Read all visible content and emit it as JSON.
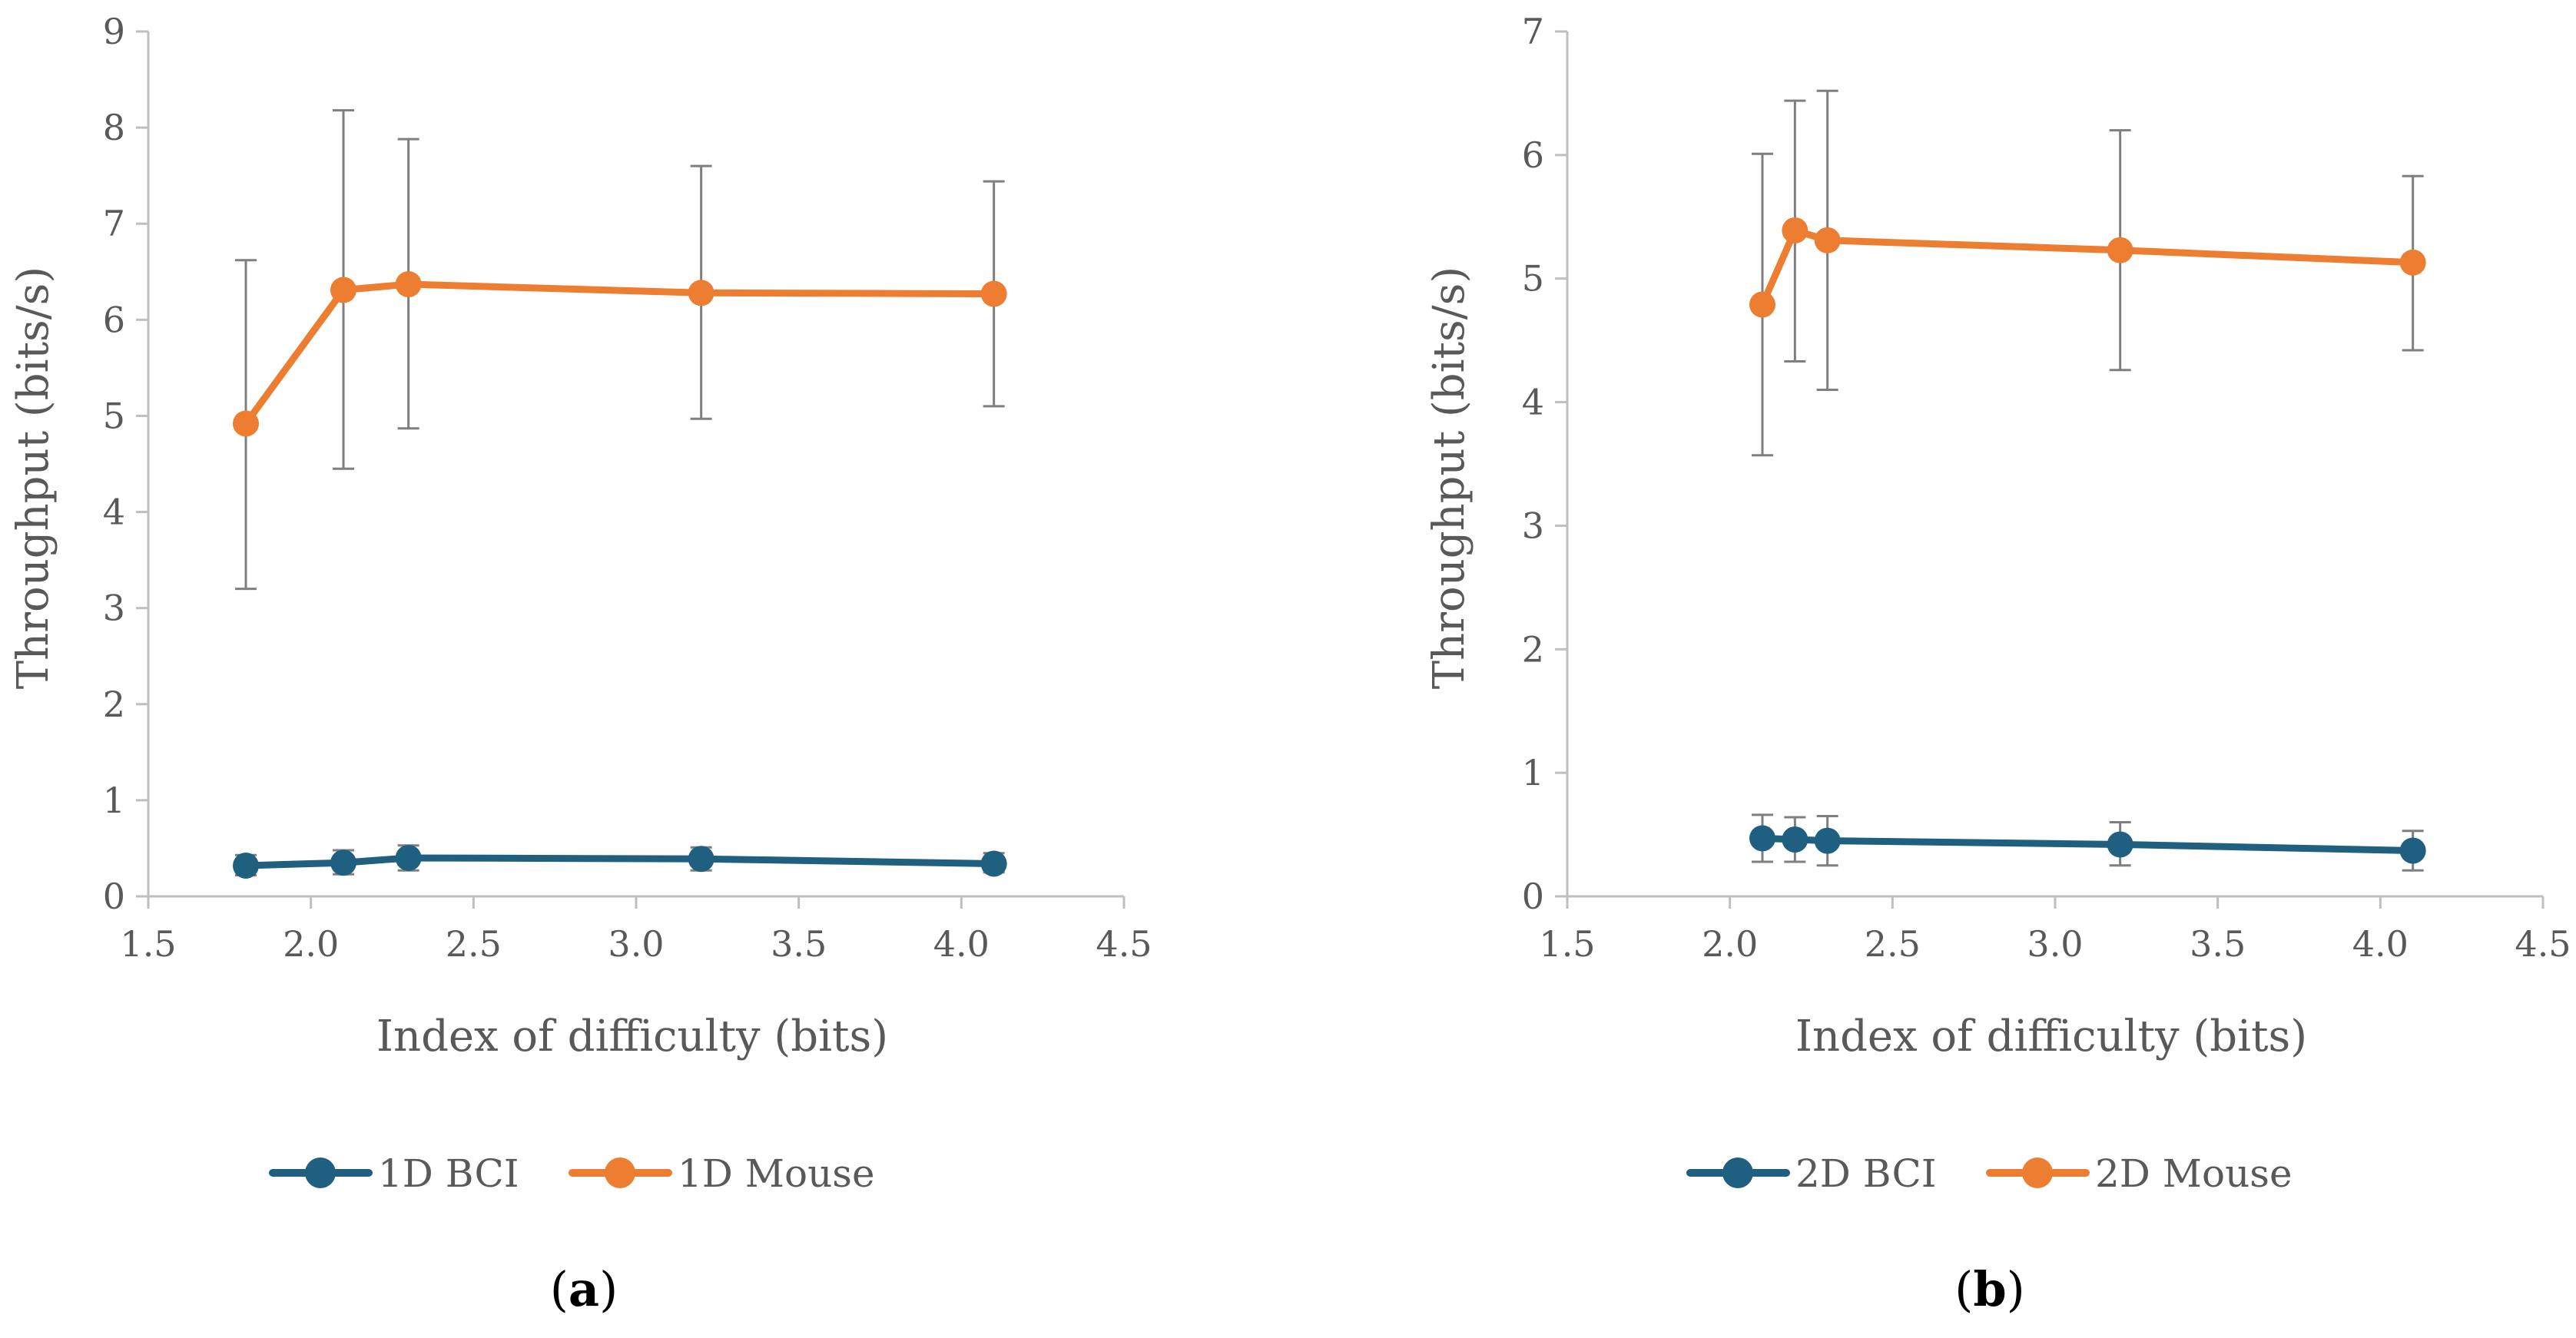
{
  "colors": {
    "bci": "#1f5f7f",
    "mouse": "#ed7d31",
    "axis": "#bfbfbf",
    "error_bar": "#7f7f7f",
    "text": "#595959"
  },
  "chart_data": [
    {
      "type": "line",
      "panel_label": "a",
      "xlabel": "Index of difficulty (bits)",
      "ylabel": "Throughput (bits/s)",
      "xlim": [
        1.5,
        4.5
      ],
      "ylim": [
        0,
        9
      ],
      "x_ticks": [
        "1.5",
        "2.0",
        "2.5",
        "3.0",
        "3.5",
        "4.0",
        "4.5"
      ],
      "y_ticks": [
        "0",
        "1",
        "2",
        "3",
        "4",
        "5",
        "6",
        "7",
        "8",
        "9"
      ],
      "grid": false,
      "legend_position": "bottom",
      "series": [
        {
          "name": "1D BCI",
          "x": [
            1.8,
            2.1,
            2.3,
            3.2,
            4.1
          ],
          "y": [
            0.32,
            0.35,
            0.4,
            0.39,
            0.34
          ],
          "err_low": [
            0.22,
            0.23,
            0.27,
            0.27,
            0.25
          ],
          "err_high": [
            0.43,
            0.48,
            0.53,
            0.51,
            0.45
          ]
        },
        {
          "name": "1D Mouse",
          "x": [
            1.8,
            2.1,
            2.3,
            3.2,
            4.1
          ],
          "y": [
            4.92,
            6.31,
            6.37,
            6.28,
            6.27
          ],
          "err_low": [
            3.2,
            4.45,
            4.87,
            4.97,
            5.1
          ],
          "err_high": [
            6.62,
            8.18,
            7.88,
            7.6,
            7.44
          ]
        }
      ]
    },
    {
      "type": "line",
      "panel_label": "b",
      "xlabel": "Index of difficulty (bits)",
      "ylabel": "Throughput (bits/s)",
      "xlim": [
        1.5,
        4.5
      ],
      "ylim": [
        0,
        7
      ],
      "x_ticks": [
        "1.5",
        "2.0",
        "2.5",
        "3.0",
        "3.5",
        "4.0",
        "4.5"
      ],
      "y_ticks": [
        "0",
        "1",
        "2",
        "3",
        "4",
        "5",
        "6",
        "7"
      ],
      "grid": false,
      "legend_position": "bottom",
      "series": [
        {
          "name": "2D BCI",
          "x": [
            2.1,
            2.2,
            2.3,
            3.2,
            4.1
          ],
          "y": [
            0.47,
            0.46,
            0.45,
            0.42,
            0.37
          ],
          "err_low": [
            0.28,
            0.28,
            0.25,
            0.25,
            0.21
          ],
          "err_high": [
            0.66,
            0.64,
            0.65,
            0.6,
            0.53
          ]
        },
        {
          "name": "2D Mouse",
          "x": [
            2.1,
            2.2,
            2.3,
            3.2,
            4.1
          ],
          "y": [
            4.79,
            5.39,
            5.31,
            5.23,
            5.13
          ],
          "err_low": [
            3.57,
            4.33,
            4.1,
            4.26,
            4.42
          ],
          "err_high": [
            6.01,
            6.44,
            6.52,
            6.2,
            5.83
          ]
        }
      ]
    }
  ]
}
